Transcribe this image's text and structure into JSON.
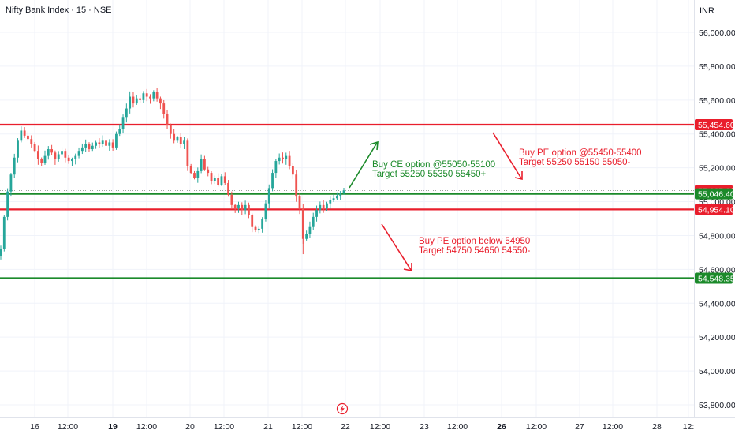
{
  "header": {
    "symbol": "Nifty Bank Index · 15 · NSE",
    "currency": "INR"
  },
  "colors": {
    "up": "#26a69a",
    "down": "#ef5350",
    "red_line": "#e91e2c",
    "green_line": "#1b8a2a",
    "axis_text": "#131722",
    "grid": "#f0f3fa"
  },
  "icons": {
    "timeline_marker": "lightning-bolt-icon"
  },
  "chart_data": {
    "type": "candlestick",
    "y_axis": {
      "range": [
        53700,
        56100
      ],
      "ticks": [
        56000,
        55800,
        55600,
        55400,
        55200,
        55000,
        54800,
        54600,
        54400,
        54200,
        54000,
        53800
      ],
      "tick_labels": [
        "56,000.00",
        "55,800.00",
        "55,600.00",
        "55,400.00",
        "55,200.00",
        "55,000.00",
        "54,800.00",
        "54,600.00",
        "54,400.00",
        "54,200.00",
        "54,000.00",
        "53,800.00"
      ]
    },
    "x_axis": {
      "tick_labels": [
        "16",
        "12:00",
        "19",
        "12:00",
        "20",
        "12:00",
        "21",
        "12:00",
        "22",
        "12:00",
        "23",
        "12:00",
        "26",
        "12:00",
        "27",
        "12:00",
        "28",
        "12:"
      ],
      "bold_labels": [
        "19",
        "26"
      ]
    },
    "horizontal_levels": [
      {
        "value": 55454.6,
        "label": "55,454.60",
        "color": "red"
      },
      {
        "value": 55065.6,
        "label": "55,065.60",
        "color": "red",
        "style": "dotted"
      },
      {
        "value": 55046.4,
        "label": "55,046.40",
        "color": "green"
      },
      {
        "value": 54954.1,
        "label": "54,954.10",
        "color": "red"
      },
      {
        "value": 54548.35,
        "label": "54,548.35",
        "color": "green"
      }
    ],
    "last_price": 55065.6,
    "candle_path_closes": [
      54720,
      54910,
      55060,
      55160,
      55260,
      55360,
      55420,
      55390,
      55370,
      55340,
      55300,
      55250,
      55230,
      55270,
      55310,
      55290,
      55250,
      55280,
      55300,
      55260,
      55240,
      55250,
      55270,
      55300,
      55320,
      55340,
      55310,
      55330,
      55350,
      55340,
      55360,
      55330,
      55350,
      55320,
      55400,
      55430,
      55500,
      55550,
      55620,
      55580,
      55610,
      55600,
      55640,
      55620,
      55610,
      55650,
      55610,
      55580,
      55520,
      55450,
      55400,
      55360,
      55380,
      55340,
      55360,
      55210,
      55170,
      55140,
      55180,
      55250,
      55190,
      55170,
      55120,
      55140,
      55100,
      55150,
      55110,
      55040,
      54980,
      54960,
      54980,
      54950,
      54980,
      54920,
      54850,
      54830,
      54840,
      54900,
      54990,
      55080,
      55170,
      55240,
      55260,
      55250,
      55270,
      55210,
      55160,
      55030,
      54960,
      54780,
      54810,
      54850,
      54910,
      54950,
      54980,
      54960,
      54990,
      55010,
      55020,
      55030,
      55050,
      55066
    ],
    "annotations": [
      {
        "line1": "Buy CE option @55050-55100",
        "line2": "Target 55250 55350 55450+",
        "color": "green"
      },
      {
        "line1": "Buy PE option @55450-55400",
        "line2": "Target 55250 55150 55050-",
        "color": "red"
      },
      {
        "line1": "Buy PE option below 54950",
        "line2": "Target 54750 54650 54550-",
        "color": "red"
      }
    ]
  }
}
